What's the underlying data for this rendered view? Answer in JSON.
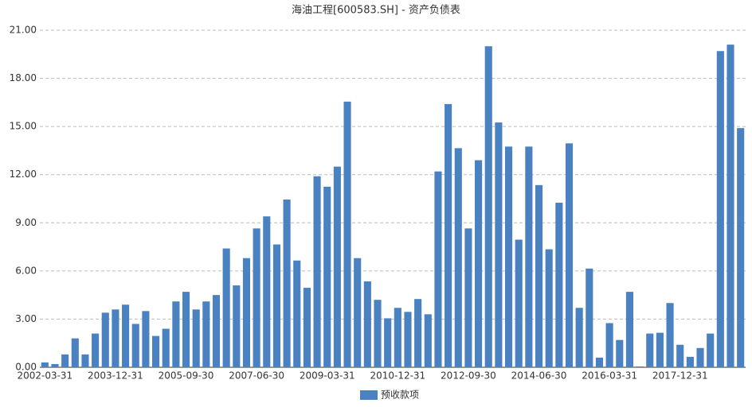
{
  "chart_data": {
    "type": "bar",
    "title": "海油工程[600583.SH] - 资产负债表",
    "categories": [
      "2002-03-31",
      null,
      null,
      null,
      null,
      null,
      null,
      "2003-12-31",
      null,
      null,
      null,
      null,
      null,
      null,
      "2005-09-30",
      null,
      null,
      null,
      null,
      null,
      null,
      "2007-06-30",
      null,
      null,
      null,
      null,
      null,
      null,
      "2009-03-31",
      null,
      null,
      null,
      null,
      null,
      null,
      "2010-12-31",
      null,
      null,
      null,
      null,
      null,
      null,
      "2012-09-30",
      null,
      null,
      null,
      null,
      null,
      null,
      "2014-06-30",
      null,
      null,
      null,
      null,
      null,
      null,
      "2016-03-31",
      null,
      null,
      null,
      null,
      null,
      null,
      "2017-12-31",
      null,
      null,
      null,
      null,
      null,
      null
    ],
    "series": [
      {
        "name": "预收款项",
        "color": "#4a81c0",
        "values": [
          0.3,
          0.2,
          0.8,
          1.8,
          0.8,
          2.1,
          3.4,
          3.6,
          3.9,
          2.7,
          3.5,
          1.95,
          2.4,
          4.1,
          4.7,
          3.6,
          4.1,
          4.5,
          7.4,
          5.1,
          6.8,
          8.65,
          9.4,
          7.65,
          10.45,
          6.65,
          4.95,
          11.9,
          11.25,
          12.5,
          16.55,
          6.8,
          5.35,
          4.2,
          3.05,
          3.7,
          3.45,
          4.25,
          3.3,
          12.2,
          16.4,
          13.65,
          8.65,
          12.9,
          20.0,
          15.25,
          13.75,
          7.95,
          13.75,
          11.35,
          7.35,
          10.25,
          13.95,
          3.7,
          6.15,
          0.6,
          2.75,
          1.7,
          4.7,
          0.05,
          2.1,
          2.15,
          4.0,
          1.4,
          0.65,
          1.2,
          2.1,
          19.7,
          20.1,
          14.9
        ]
      }
    ],
    "ylim": [
      0,
      21
    ],
    "yticks": [
      {
        "value": 0,
        "label": "0.00"
      },
      {
        "value": 3,
        "label": "3.00"
      },
      {
        "value": 6,
        "label": "6.00"
      },
      {
        "value": 9,
        "label": "9.00"
      },
      {
        "value": 12,
        "label": "12.00"
      },
      {
        "value": 15,
        "label": "15.00"
      },
      {
        "value": 18,
        "label": "18.00"
      },
      {
        "value": 21,
        "label": "21.00"
      }
    ],
    "grid": true,
    "legend": "bottom"
  }
}
